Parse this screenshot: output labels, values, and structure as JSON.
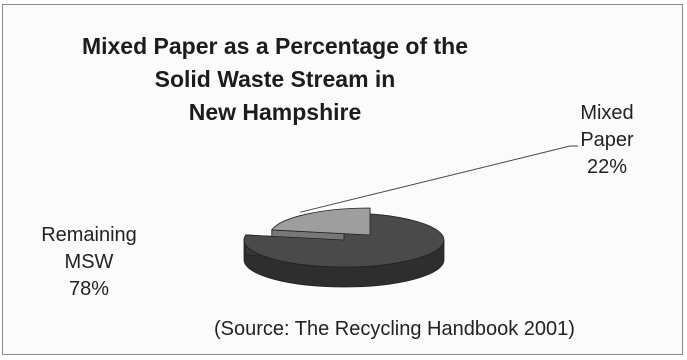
{
  "chart_data": {
    "type": "pie",
    "title_lines": [
      "Mixed Paper as a Percentage of the",
      "Solid Waste Stream in",
      "New Hampshire"
    ],
    "slices": [
      {
        "label_lines": [
          "Remaining",
          "MSW"
        ],
        "value": 78,
        "display": "78%",
        "color": "#4a4a4a"
      },
      {
        "label_lines": [
          "Mixed",
          "Paper"
        ],
        "value": 22,
        "display": "22%",
        "color": "#9e9e9e"
      }
    ],
    "source": "(Source: The Recycling Handbook 2001)"
  }
}
